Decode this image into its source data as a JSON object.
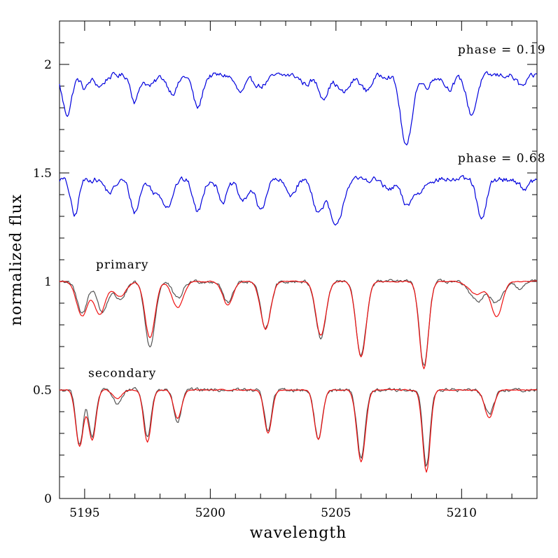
{
  "chart_data": {
    "type": "line",
    "title": "",
    "xlabel": "wavelength",
    "ylabel": "normalized flux",
    "xlim": [
      5194,
      5213
    ],
    "ylim": [
      0,
      2.2
    ],
    "xticks": [
      5195,
      5200,
      5205,
      5210
    ],
    "yticks": [
      0,
      0.5,
      1,
      1.5,
      2
    ],
    "xtick_labels": [
      "5195",
      "5200",
      "5205",
      "5210"
    ],
    "ytick_labels": [
      "0",
      "0.5",
      "1",
      "1.5",
      "2"
    ],
    "grid": false,
    "annotations": [
      {
        "text": "phase = 0.19",
        "x": 5211.6,
        "y": 2.05
      },
      {
        "text": "phase = 0.68",
        "x": 5211.6,
        "y": 1.55
      },
      {
        "text": "primary",
        "x": 5196.5,
        "y": 1.06
      },
      {
        "text": "secondary",
        "x": 5196.5,
        "y": 0.56
      }
    ],
    "colors": {
      "observed": "#0000dd",
      "disentangled": "#555555",
      "model": "#ee1111"
    },
    "series": [
      {
        "color": "#0000dd",
        "line_ids": [
          {
            "center": 5194.3,
            "depth": 0.18,
            "width": 0.18
          },
          {
            "center": 5195.0,
            "depth": 0.06,
            "width": 0.15
          },
          {
            "center": 5195.6,
            "depth": 0.05,
            "width": 0.2
          },
          {
            "center": 5197.0,
            "depth": 0.12,
            "width": 0.15
          },
          {
            "center": 5197.6,
            "depth": 0.05,
            "width": 0.2
          },
          {
            "center": 5198.5,
            "depth": 0.08,
            "width": 0.2
          },
          {
            "center": 5199.5,
            "depth": 0.15,
            "width": 0.18
          },
          {
            "center": 5201.2,
            "depth": 0.08,
            "width": 0.2
          },
          {
            "center": 5202.0,
            "depth": 0.05,
            "width": 0.25
          },
          {
            "center": 5203.8,
            "depth": 0.04,
            "width": 0.2
          },
          {
            "center": 5204.5,
            "depth": 0.1,
            "width": 0.2
          },
          {
            "center": 5205.3,
            "depth": 0.08,
            "width": 0.25
          },
          {
            "center": 5206.2,
            "depth": 0.07,
            "width": 0.2
          },
          {
            "center": 5207.8,
            "depth": 0.33,
            "width": 0.22
          },
          {
            "center": 5208.6,
            "depth": 0.05,
            "width": 0.2
          },
          {
            "center": 5209.5,
            "depth": 0.06,
            "width": 0.2
          },
          {
            "center": 5210.4,
            "depth": 0.18,
            "width": 0.2
          },
          {
            "center": 5212.4,
            "depth": 0.05,
            "width": 0.2
          }
        ],
        "baseline": 1.95,
        "lines": "phase 0.19"
      },
      {
        "color": "#0000dd",
        "baseline": 1.47,
        "lines": [
          {
            "center": 5194.6,
            "depth": 0.17,
            "width": 0.15
          },
          {
            "center": 5196.0,
            "depth": 0.06,
            "width": 0.2
          },
          {
            "center": 5197.0,
            "depth": 0.15,
            "width": 0.18
          },
          {
            "center": 5197.8,
            "depth": 0.06,
            "width": 0.2
          },
          {
            "center": 5198.3,
            "depth": 0.12,
            "width": 0.2
          },
          {
            "center": 5199.5,
            "depth": 0.15,
            "width": 0.18
          },
          {
            "center": 5200.5,
            "depth": 0.1,
            "width": 0.18
          },
          {
            "center": 5201.3,
            "depth": 0.1,
            "width": 0.2
          },
          {
            "center": 5202.0,
            "depth": 0.14,
            "width": 0.2
          },
          {
            "center": 5203.2,
            "depth": 0.07,
            "width": 0.2
          },
          {
            "center": 5204.3,
            "depth": 0.15,
            "width": 0.2
          },
          {
            "center": 5205.0,
            "depth": 0.22,
            "width": 0.25
          },
          {
            "center": 5207.1,
            "depth": 0.05,
            "width": 0.2
          },
          {
            "center": 5207.8,
            "depth": 0.12,
            "width": 0.2
          },
          {
            "center": 5208.3,
            "depth": 0.06,
            "width": 0.2
          },
          {
            "center": 5210.8,
            "depth": 0.19,
            "width": 0.18
          },
          {
            "center": 5212.5,
            "depth": 0.04,
            "width": 0.2
          }
        ]
      },
      {
        "color": "#555555",
        "baseline": 1.0,
        "lines": [
          {
            "center": 5194.9,
            "depth": 0.15,
            "width": 0.2
          },
          {
            "center": 5195.7,
            "depth": 0.14,
            "width": 0.2
          },
          {
            "center": 5196.4,
            "depth": 0.08,
            "width": 0.25
          },
          {
            "center": 5197.6,
            "depth": 0.3,
            "width": 0.2
          },
          {
            "center": 5198.7,
            "depth": 0.08,
            "width": 0.2
          },
          {
            "center": 5200.7,
            "depth": 0.1,
            "width": 0.18
          },
          {
            "center": 5202.2,
            "depth": 0.21,
            "width": 0.2
          },
          {
            "center": 5204.4,
            "depth": 0.26,
            "width": 0.2
          },
          {
            "center": 5206.0,
            "depth": 0.34,
            "width": 0.2
          },
          {
            "center": 5208.5,
            "depth": 0.39,
            "width": 0.18
          },
          {
            "center": 5210.6,
            "depth": 0.09,
            "width": 0.3
          },
          {
            "center": 5211.4,
            "depth": 0.1,
            "width": 0.25
          },
          {
            "center": 5212.3,
            "depth": 0.03,
            "width": 0.2
          }
        ]
      },
      {
        "color": "#ee1111",
        "baseline": 1.0,
        "lines": [
          {
            "center": 5194.9,
            "depth": 0.16,
            "width": 0.22
          },
          {
            "center": 5195.6,
            "depth": 0.15,
            "width": 0.22
          },
          {
            "center": 5196.4,
            "depth": 0.07,
            "width": 0.25
          },
          {
            "center": 5197.6,
            "depth": 0.26,
            "width": 0.2
          },
          {
            "center": 5198.7,
            "depth": 0.12,
            "width": 0.22
          },
          {
            "center": 5200.7,
            "depth": 0.11,
            "width": 0.2
          },
          {
            "center": 5202.2,
            "depth": 0.22,
            "width": 0.2
          },
          {
            "center": 5204.4,
            "depth": 0.25,
            "width": 0.2
          },
          {
            "center": 5206.0,
            "depth": 0.35,
            "width": 0.2
          },
          {
            "center": 5208.5,
            "depth": 0.4,
            "width": 0.18
          },
          {
            "center": 5210.6,
            "depth": 0.06,
            "width": 0.3
          },
          {
            "center": 5211.4,
            "depth": 0.16,
            "width": 0.22
          }
        ]
      },
      {
        "color": "#555555",
        "baseline": 0.5,
        "lines": [
          {
            "center": 5194.8,
            "depth": 0.25,
            "width": 0.14
          },
          {
            "center": 5195.3,
            "depth": 0.22,
            "width": 0.14
          },
          {
            "center": 5196.3,
            "depth": 0.06,
            "width": 0.18
          },
          {
            "center": 5197.5,
            "depth": 0.22,
            "width": 0.14
          },
          {
            "center": 5198.7,
            "depth": 0.15,
            "width": 0.15
          },
          {
            "center": 5202.3,
            "depth": 0.19,
            "width": 0.14
          },
          {
            "center": 5204.3,
            "depth": 0.23,
            "width": 0.15
          },
          {
            "center": 5206.0,
            "depth": 0.31,
            "width": 0.16
          },
          {
            "center": 5208.6,
            "depth": 0.35,
            "width": 0.14
          },
          {
            "center": 5211.1,
            "depth": 0.11,
            "width": 0.18
          }
        ]
      },
      {
        "color": "#ee1111",
        "baseline": 0.5,
        "lines": [
          {
            "center": 5194.8,
            "depth": 0.26,
            "width": 0.15
          },
          {
            "center": 5195.3,
            "depth": 0.23,
            "width": 0.15
          },
          {
            "center": 5196.3,
            "depth": 0.04,
            "width": 0.18
          },
          {
            "center": 5197.5,
            "depth": 0.24,
            "width": 0.15
          },
          {
            "center": 5198.7,
            "depth": 0.13,
            "width": 0.16
          },
          {
            "center": 5202.3,
            "depth": 0.2,
            "width": 0.15
          },
          {
            "center": 5204.3,
            "depth": 0.23,
            "width": 0.16
          },
          {
            "center": 5206.0,
            "depth": 0.33,
            "width": 0.17
          },
          {
            "center": 5208.6,
            "depth": 0.38,
            "width": 0.15
          },
          {
            "center": 5211.1,
            "depth": 0.13,
            "width": 0.18
          }
        ]
      }
    ]
  }
}
